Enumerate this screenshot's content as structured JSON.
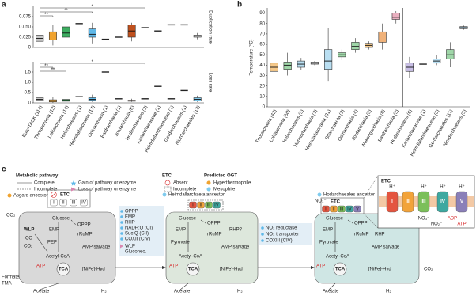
{
  "chart_data": [
    {
      "type": "box",
      "panel": "a",
      "ylabel": "Duplication rate",
      "ylim": [
        0,
        0.1
      ],
      "yticks": [
        0,
        0.025,
        {
          "value": 0.05,
          "label": "0.050"
        },
        0.075
      ],
      "colors": [
        "#c8c8c8",
        "#f0a32f",
        "#3cae60",
        "#222222",
        "#5fb8e8",
        "#222222",
        "#222222",
        "#c0501d",
        "#222222",
        "#222222",
        "#222222",
        "#222222",
        "#bdbdbd"
      ],
      "stats": [
        [
          0,
          0.015,
          0.022,
          0.03,
          0.06
        ],
        [
          0.005,
          0.018,
          0.028,
          0.038,
          0.055
        ],
        [
          0.01,
          0.025,
          0.035,
          0.05,
          0.07
        ],
        [
          0.058
        ],
        [
          0.01,
          0.025,
          0.032,
          0.045,
          0.06
        ],
        [
          0.02
        ],
        [
          0.025
        ],
        [
          0.015,
          0.025,
          0.04,
          0.055,
          0.06
        ],
        [
          0.048
        ],
        [
          0.04
        ],
        [
          0.055
        ],
        [
          0.055
        ],
        [
          0.02,
          0.025,
          0.028,
          0.03,
          0.035
        ]
      ],
      "annotations": [
        "**",
        "**",
        "*"
      ]
    },
    {
      "type": "box",
      "ylabel": "Loss rate",
      "ylim": [
        0,
        2
      ],
      "yticks": [
        0,
        0.5,
        {
          "value": 1,
          "label": "1.0"
        },
        1.5
      ],
      "categories": [
        "Eury-TACK (114)",
        "Thorarchaeia (13)",
        "Lokiarchaeia (14)",
        "Helarchaeales (1)",
        "Heimdallarchaeia (17)",
        "Odinarchaeia (1)",
        "Baldrarchaeia (1)",
        "Jordarchaeia (6)",
        "Hodarchaeales (2)",
        "Kariarchaeaceae (1)",
        "Heimdallarchaeaceae (1)",
        "Gerdarchaeales (1)",
        "Njordarchaeales (12)"
      ],
      "colors": [
        "#c8c8c8",
        "#f0a32f",
        "#3cae60",
        "#222222",
        "#5fb8e8",
        "#222222",
        "#222222",
        "#c0501d",
        "#222222",
        "#222222",
        "#222222",
        "#222222",
        "#7fcbee"
      ],
      "stats": [
        [
          0,
          0.12,
          0.17,
          0.25,
          0.5
        ],
        [
          0,
          0.05,
          0.1,
          0.15,
          0.3
        ],
        [
          0.05,
          0.08,
          0.12,
          0.17,
          0.3
        ],
        [
          0.3
        ],
        [
          0.05,
          0.12,
          0.17,
          0.25,
          0.4
        ],
        [
          1.5
        ],
        [
          0.2
        ],
        [
          0.05,
          0.08,
          0.1,
          0.13,
          0.2
        ],
        [
          0.2
        ],
        [
          0.8
        ],
        [
          0.2
        ],
        [
          0.6
        ],
        [
          0.05,
          0.1,
          0.17,
          0.25,
          0.35
        ]
      ],
      "annotations": [
        "*",
        "**",
        "**"
      ]
    },
    {
      "type": "box",
      "panel": "b",
      "ylabel": "Temperature (°C)",
      "ylim": [
        0,
        95
      ],
      "yticks": [
        0,
        10,
        20,
        30,
        40,
        50,
        60,
        70,
        80,
        90
      ],
      "categories": [
        "Thorarchaeia (42)",
        "Lokiarchaeia (50)",
        "Helarchaeales (5)",
        "Hermodarchaeia (2)",
        "Heimdallarchaeia (31)",
        "Sifarchaeota (3)",
        "Odinarchaeia (4)",
        "Jordarchaeia (3)",
        "Wukongarchaeia (8)",
        "Baldrarchaeia (3)",
        "Hodarchaeales (6)",
        "Kariarchaeaceae (1)",
        "Heimdallarchaeaceae (3)",
        "Gerdarchaeales (11)",
        "Njordarchaeales (5)"
      ],
      "colors": [
        "#f6c98a",
        "#9fd6a8",
        "#b9dff2",
        "#cfcfcf",
        "#b9dff2",
        "#9fd6a8",
        "#9fd6a8",
        "#f6c98a",
        "#f0b27a",
        "#eab0c0",
        "#c9bfe6",
        "#222222",
        "#b9dff2",
        "#9fd6a8",
        "#b9dff2"
      ],
      "stats": [
        [
          28,
          34,
          38,
          42,
          50
        ],
        [
          30,
          36,
          40,
          43,
          52
        ],
        [
          35,
          38,
          41,
          44,
          47
        ],
        [
          40,
          41,
          42,
          43,
          44
        ],
        [
          25,
          36,
          44,
          55,
          76
        ],
        [
          45,
          48,
          50,
          52,
          55
        ],
        [
          52,
          55,
          58,
          62,
          66
        ],
        [
          55,
          57,
          59,
          61,
          63
        ],
        [
          55,
          62,
          68,
          72,
          80
        ],
        [
          80,
          84,
          86,
          90,
          92
        ],
        [
          28,
          34,
          38,
          42,
          48
        ],
        [
          41
        ],
        [
          40,
          42,
          44,
          46,
          50
        ],
        [
          38,
          46,
          50,
          55,
          62
        ],
        [
          74,
          75,
          76,
          77,
          78
        ]
      ]
    }
  ],
  "diagram": {
    "panel": "c",
    "legend": {
      "pathway": "Metabolic pathway",
      "complete": "Complete",
      "incomplete": "Incomplete",
      "gain": "Gain of pathway or enzyme",
      "loss": "Loss of pathway or enzyme",
      "etc": "ETC",
      "absent": "Absent",
      "etc_incomplete": "Incomplete",
      "ogt": "Predicted OGT",
      "hyper": "Hyperthermophile",
      "meso": "Mesophile"
    },
    "cells": [
      {
        "title": "Asgard ancestor",
        "etc": "ETC",
        "complexes": [
          "I",
          "II",
          "III",
          "IV"
        ],
        "labels": [
          "CO₂",
          "WLP",
          "CO",
          "CO₂",
          "Glucose",
          "EMP",
          "PEP",
          "OPPP",
          "rRuMP",
          "AMP salvage",
          "Acetyl-CoA",
          "TCA",
          "ATP",
          "[NiFe]-Hyd",
          "Formate",
          "TMA",
          "Acetate",
          "H₂"
        ]
      },
      {
        "title": "Heimdallarchaeia ancestor",
        "complexes": [
          "I",
          "II",
          "III",
          "IV"
        ],
        "labels": [
          "Glucose",
          "EMP",
          "OPPP",
          "RHP?",
          "rRuMP",
          "Pyruvate",
          "AMP salvage",
          "Acetyl-CoA",
          "TCA",
          "ATP",
          "[NiFe]-Hyd",
          "Acetate",
          "H₂"
        ]
      },
      {
        "title": "Hodarchaeales ancestor",
        "etc": "ETC",
        "complexes": [
          "I",
          "II",
          "III",
          "IV",
          "V"
        ],
        "labels": [
          "NO₃⁻",
          "Glucose",
          "EMP",
          "OPPP",
          "RHP",
          "rRuMP",
          "Pyruvate",
          "AMP salvage",
          "Acetyl-CoA",
          "TCA",
          "ATP",
          "[NiFe]-Hyd",
          "Acetate",
          "H₂",
          "CO₂"
        ]
      }
    ],
    "changes": [
      {
        "gains": [
          "OPPP",
          "EMP",
          "RHP",
          "NADH:Q (CI)",
          "Suc:Q (CII)",
          "COXII (CIV)"
        ],
        "losses": [
          "WLP",
          "Gluconeo."
        ]
      },
      {
        "gains": [
          "NO₃ reductase",
          "NO₃ transporter",
          "COXIII (CIV)"
        ]
      }
    ],
    "inset": {
      "title": "ETC",
      "complexes": [
        "I",
        "II",
        "III",
        "IV",
        "V"
      ],
      "labels": [
        "H⁺",
        "H⁺",
        "H⁺",
        "H⁺",
        "NO₃⁻",
        "NO₂⁻",
        "ADP",
        "ATP"
      ]
    }
  }
}
